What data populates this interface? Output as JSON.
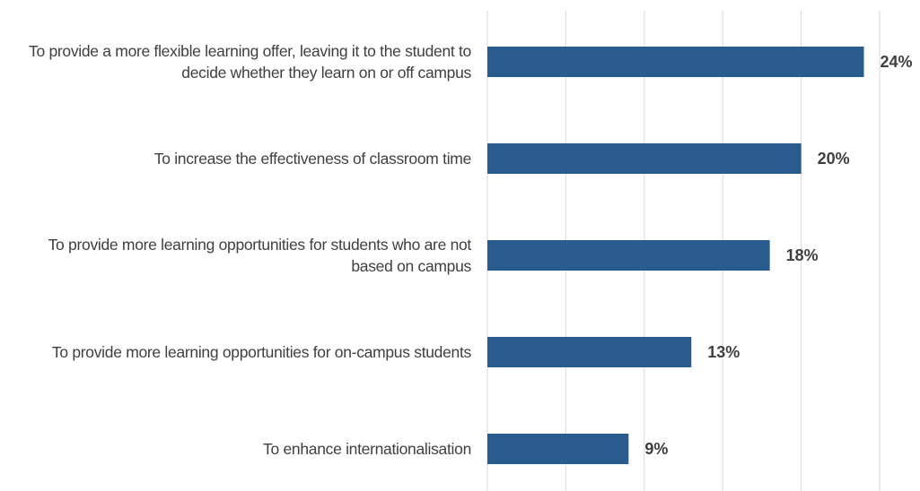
{
  "chart_data": {
    "type": "bar",
    "orientation": "horizontal",
    "categories": [
      "To provide a more flexible learning offer, leaving it to the student to decide whether they learn on or off campus",
      "To increase the effectiveness of classroom time",
      "To provide more learning opportunities for students who are not based on campus",
      "To provide more learning opportunities for on-campus students",
      "To enhance internationalisation"
    ],
    "values": [
      24,
      20,
      18,
      13,
      9
    ],
    "value_labels": [
      "24%",
      "20%",
      "18%",
      "13%",
      "9%"
    ],
    "color": "#2a5b8e",
    "xlim": [
      0,
      25
    ],
    "xticks": [
      0,
      5,
      10,
      15,
      20,
      25
    ],
    "grid": true
  }
}
